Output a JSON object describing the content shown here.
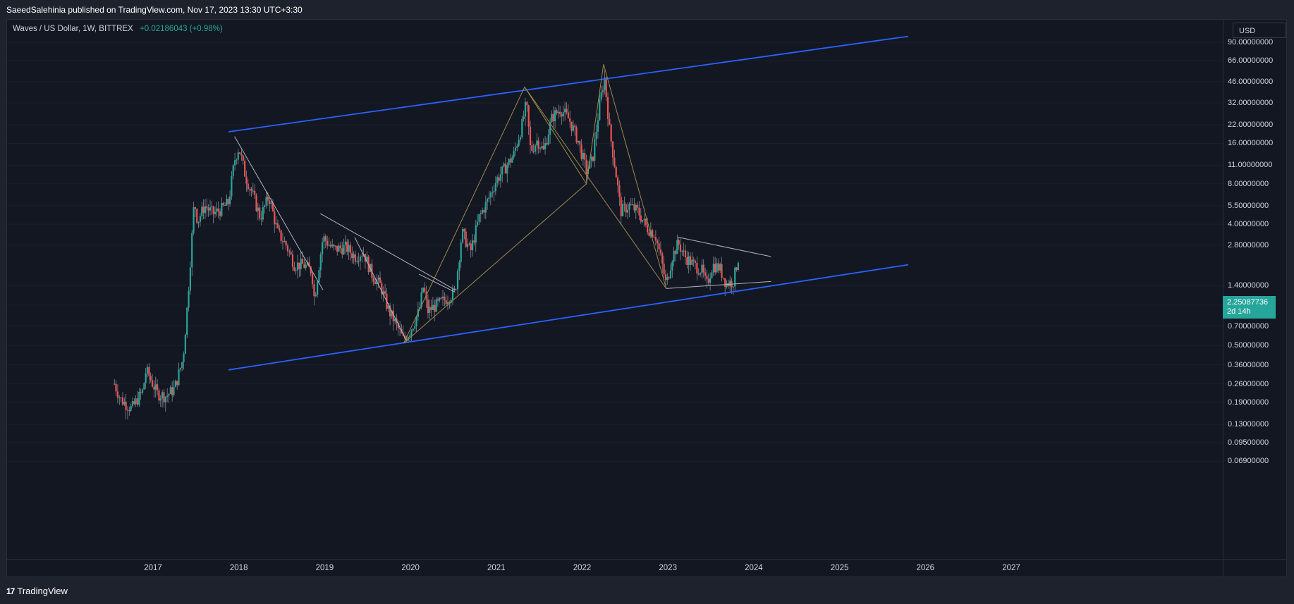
{
  "publisher": "SaeedSalehinia published on TradingView.com, Nov 17, 2023 13:30 UTC+3:30",
  "legend": {
    "symbol": "Waves / US Dollar, 1W, BITTREX",
    "change": "+0.02186043 (+0.98%)"
  },
  "currency": "USD",
  "last_price": {
    "value": "2.25087736",
    "countdown": "2d 14h"
  },
  "footer": {
    "brand": "TradingView",
    "logo": "tradingview-logo"
  },
  "colors": {
    "background": "#131722",
    "up_candle": "#26a69a",
    "down_candle": "#ef5350",
    "channel": "#2962ff",
    "pattern_lines": "#9c8a4a",
    "trend_lines": "#b2b5be"
  },
  "chart_data": {
    "type": "candlestick",
    "title": "Waves / US Dollar, 1W, BITTREX",
    "y_scale": "log",
    "y_ticks": [
      "90.00000000",
      "66.00000000",
      "46.00000000",
      "32.00000000",
      "22.00000000",
      "16.00000000",
      "11.00000000",
      "8.00000000",
      "5.50000000",
      "4.00000000",
      "2.80000000",
      "1.40000000",
      "1.00000000",
      "0.70000000",
      "0.50000000",
      "0.36000000",
      "0.26000000",
      "0.19000000",
      "0.13000000",
      "0.09500000",
      "0.06900000"
    ],
    "x_ticks": [
      "2017",
      "2018",
      "2019",
      "2020",
      "2021",
      "2022",
      "2023",
      "2024",
      "2025",
      "2026",
      "2027"
    ],
    "price_path": [
      [
        "2016.55",
        0.26
      ],
      [
        "2016.62",
        0.2
      ],
      [
        "2016.75",
        0.17
      ],
      [
        "2016.88",
        0.23
      ],
      [
        "2016.92",
        0.33
      ],
      [
        "2017.05",
        0.22
      ],
      [
        "2017.15",
        0.21
      ],
      [
        "2017.25",
        0.24
      ],
      [
        "2017.35",
        0.4
      ],
      [
        "2017.40",
        1.0
      ],
      [
        "2017.45",
        3.0
      ],
      [
        "2017.48",
        6.0
      ],
      [
        "2017.52",
        4.2
      ],
      [
        "2017.60",
        5.5
      ],
      [
        "2017.70",
        4.8
      ],
      [
        "2017.80",
        5.2
      ],
      [
        "2017.88",
        5.8
      ],
      [
        "2017.95",
        12.0
      ],
      [
        "2018.00",
        15.0
      ],
      [
        "2018.08",
        9.0
      ],
      [
        "2018.15",
        7.0
      ],
      [
        "2018.25",
        4.5
      ],
      [
        "2018.35",
        6.5
      ],
      [
        "2018.45",
        3.5
      ],
      [
        "2018.55",
        2.8
      ],
      [
        "2018.65",
        2.0
      ],
      [
        "2018.75",
        2.0
      ],
      [
        "2018.85",
        1.8
      ],
      [
        "2018.88",
        1.1
      ],
      [
        "2018.93",
        1.9
      ],
      [
        "2018.98",
        3.2
      ],
      [
        "2019.10",
        2.6
      ],
      [
        "2019.25",
        2.7
      ],
      [
        "2019.35",
        2.3
      ],
      [
        "2019.45",
        2.5
      ],
      [
        "2019.55",
        1.7
      ],
      [
        "2019.65",
        1.4
      ],
      [
        "2019.75",
        0.9
      ],
      [
        "2019.82",
        0.75
      ],
      [
        "2019.92",
        0.55
      ],
      [
        "2020.00",
        0.65
      ],
      [
        "2020.10",
        0.9
      ],
      [
        "2020.15",
        1.4
      ],
      [
        "2020.20",
        0.9
      ],
      [
        "2020.30",
        1.0
      ],
      [
        "2020.40",
        1.1
      ],
      [
        "2020.52",
        1.25
      ],
      [
        "2020.60",
        3.5
      ],
      [
        "2020.70",
        2.5
      ],
      [
        "2020.80",
        4.5
      ],
      [
        "2020.90",
        6.0
      ],
      [
        "2021.00",
        8.5
      ],
      [
        "2021.10",
        10.5
      ],
      [
        "2021.20",
        13.0
      ],
      [
        "2021.30",
        22.0
      ],
      [
        "2021.35",
        32.0
      ],
      [
        "2021.40",
        14.0
      ],
      [
        "2021.48",
        17.0
      ],
      [
        "2021.55",
        14.0
      ],
      [
        "2021.65",
        25.0
      ],
      [
        "2021.75",
        29.0
      ],
      [
        "2021.85",
        24.0
      ],
      [
        "2021.95",
        17.0
      ],
      [
        "2022.05",
        10.0
      ],
      [
        "2022.12",
        12.0
      ],
      [
        "2022.20",
        30.0
      ],
      [
        "2022.26",
        50.0
      ],
      [
        "2022.32",
        20.0
      ],
      [
        "2022.40",
        9.0
      ],
      [
        "2022.45",
        5.0
      ],
      [
        "2022.55",
        5.5
      ],
      [
        "2022.65",
        5.0
      ],
      [
        "2022.75",
        3.8
      ],
      [
        "2022.85",
        3.4
      ],
      [
        "2022.92",
        2.2
      ],
      [
        "2022.98",
        1.4
      ],
      [
        "2023.05",
        2.3
      ],
      [
        "2023.12",
        2.9
      ],
      [
        "2023.20",
        2.3
      ],
      [
        "2023.30",
        2.0
      ],
      [
        "2023.40",
        1.8
      ],
      [
        "2023.45",
        1.4
      ],
      [
        "2023.52",
        2.0
      ],
      [
        "2023.60",
        1.9
      ],
      [
        "2023.68",
        1.45
      ],
      [
        "2023.76",
        1.5
      ],
      [
        "2023.82",
        2.25
      ]
    ],
    "drawings": {
      "channel_upper": [
        [
          "2017.88",
          19.5
        ],
        [
          "2025.80",
          100.0
        ]
      ],
      "channel_lower": [
        [
          "2017.88",
          0.33
        ],
        [
          "2025.80",
          2.0
        ]
      ],
      "trend_2018": [
        [
          "2017.95",
          18.0
        ],
        [
          "2018.98",
          1.3
        ]
      ],
      "trend_2019": [
        [
          "2018.95",
          4.8
        ],
        [
          "2020.52",
          1.3
        ]
      ],
      "trend_2019b": [
        [
          "2019.35",
          3.2
        ],
        [
          "2019.95",
          0.55
        ]
      ],
      "trend_2020": [
        [
          "2020.10",
          1.7
        ],
        [
          "2020.52",
          1.25
        ]
      ],
      "pattern_a": [
        [
          "2019.92",
          0.52
        ],
        [
          "2021.33",
          42.0
        ],
        [
          "2022.05",
          8.0
        ],
        [
          "2022.25",
          62.0
        ],
        [
          "2022.98",
          1.33
        ]
      ],
      "pattern_b": [
        [
          "2019.92",
          0.52
        ],
        [
          "2022.05",
          8.0
        ]
      ],
      "pattern_c": [
        [
          "2021.33",
          42.0
        ],
        [
          "2022.98",
          1.33
        ]
      ],
      "triangle_top": [
        [
          "2023.12",
          3.2
        ],
        [
          "2024.20",
          2.3
        ]
      ],
      "triangle_bottom": [
        [
          "2022.98",
          1.33
        ],
        [
          "2024.20",
          1.5
        ]
      ]
    }
  }
}
